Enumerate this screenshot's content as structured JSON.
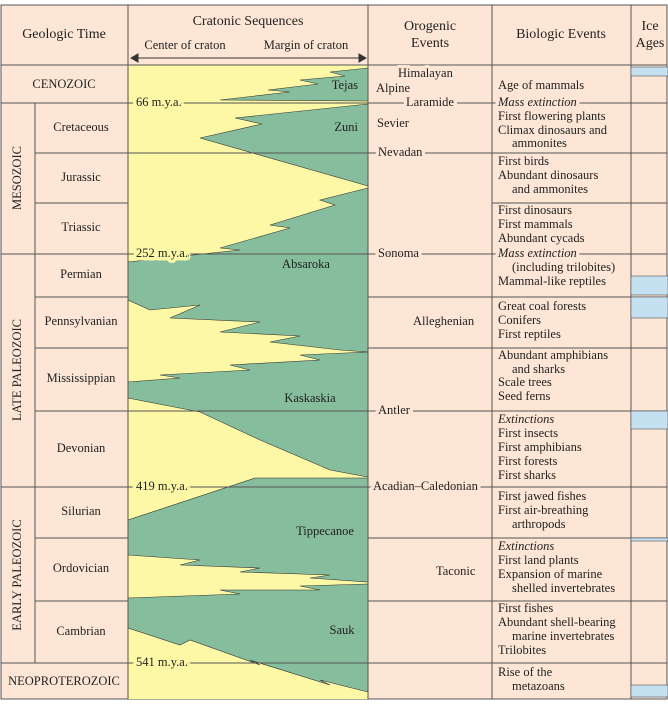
{
  "header": {
    "geologic_time": "Geologic Time",
    "cratonic_sequences": "Cratonic Sequences",
    "center_of_craton": "Center of craton",
    "margin_of_craton": "Margin of craton",
    "orogenic_events": [
      "Orogenic",
      "Events"
    ],
    "biologic_events": "Biologic Events",
    "ice_ages": [
      "Ice",
      "Ages"
    ]
  },
  "eras": [
    "CENOZOIC",
    "MESOZOIC",
    "LATE PALEOZOIC",
    "EARLY PALEOZOIC",
    "NEOPROTEROZOIC"
  ],
  "periods": [
    "Cretaceous",
    "Jurassic",
    "Triassic",
    "Permian",
    "Pennsylvanian",
    "Mississippian",
    "Devonian",
    "Silurian",
    "Ordovician",
    "Cambrian"
  ],
  "dates": [
    "66 m.y.a.",
    "252 m.y.a.",
    "419 m.y.a.",
    "541 m.y.a."
  ],
  "sequences": [
    "Tejas",
    "Zuni",
    "Absaroka",
    "Kaskaskia",
    "Tippecanoe",
    "Sauk"
  ],
  "orogenic_events": [
    "Himalayan",
    "Alpine",
    "Laramide",
    "Sevier",
    "Nevadan",
    "Sonoma",
    "Alleghenian",
    "Antler",
    "Acadian–Caledonian",
    "Taconic"
  ],
  "biologic_events": [
    "Age of mammals",
    "Mass extinction",
    "First flowering plants",
    "Climax dinosaurs and",
    "ammonites",
    "First birds",
    "Abundant dinosaurs",
    "and ammonites",
    "First dinosaurs",
    "First mammals",
    "Abundant cycads",
    "Mass extinction",
    "(including trilobites)",
    "Mammal-like reptiles",
    "Great coal forests",
    "Conifers",
    "First reptiles",
    "Abundant amphibians",
    "and sharks",
    "Scale trees",
    "Seed ferns",
    "Extinctions",
    "First insects",
    "First amphibians",
    "First forests",
    "First sharks",
    "First jawed fishes",
    "First air-breathing",
    "arthropods",
    "Extinctions",
    "First land plants",
    "Expansion of marine",
    "shelled invertebrates",
    "First fishes",
    "Abundant shell-bearing",
    "marine invertebrates",
    "Trilobites",
    "Rise of the",
    "metazoans"
  ]
}
